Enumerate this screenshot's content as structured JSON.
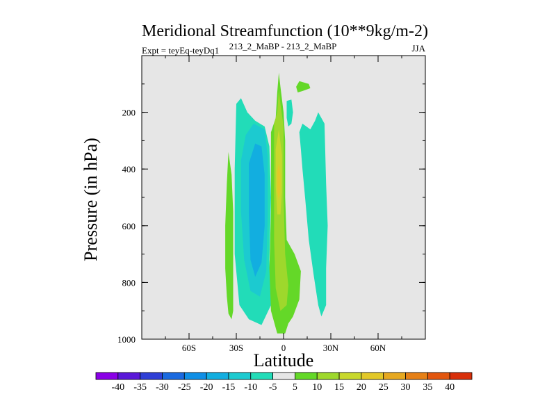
{
  "chart_data": {
    "type": "heatmap",
    "title": "Meridional Streamfunction (10**9kg/m-2)",
    "left_subtitle": "Expt = teyEq-teyDq1",
    "center_subtitle": "213_2_MaBP - 213_2_MaBP",
    "right_subtitle": "JJA",
    "xlabel": "Latitude",
    "ylabel": "Pressure (in hPa)",
    "xlim": [
      -90,
      90
    ],
    "ylim": [
      1000,
      0
    ],
    "xticks": [
      {
        "value": -60,
        "label": "60S"
      },
      {
        "value": -30,
        "label": "30S"
      },
      {
        "value": 0,
        "label": "0"
      },
      {
        "value": 30,
        "label": "30N"
      },
      {
        "value": 60,
        "label": "60N"
      }
    ],
    "yticks": [
      {
        "value": 200,
        "label": "200"
      },
      {
        "value": 400,
        "label": "400"
      },
      {
        "value": 600,
        "label": "600"
      },
      {
        "value": 800,
        "label": "800"
      },
      {
        "value": 1000,
        "label": "1000"
      }
    ],
    "background_color": "#e6e6e6",
    "colorbar": {
      "labels": [
        "-40",
        "-35",
        "-30",
        "-25",
        "-20",
        "-15",
        "-10",
        "-5",
        "5",
        "10",
        "15",
        "20",
        "25",
        "30",
        "35",
        "40"
      ],
      "colors": [
        "#8a00e6",
        "#5a18d8",
        "#2f3fd6",
        "#1a6ae0",
        "#0f8fe6",
        "#12aee0",
        "#1ccad0",
        "#22dcb8",
        "#e6e6e6",
        "#64d828",
        "#9ed82c",
        "#c8d82c",
        "#e2c828",
        "#e6a820",
        "#e68016",
        "#e2560e",
        "#d8300a"
      ]
    },
    "regions": [
      {
        "name": "outer-s-green",
        "level": "5",
        "color": "#64d828",
        "points": [
          [
            -35,
            910
          ],
          [
            -36,
            850
          ],
          [
            -37,
            750
          ],
          [
            -37,
            600
          ],
          [
            -36,
            450
          ],
          [
            -35,
            340
          ],
          [
            -33,
            420
          ],
          [
            -32,
            550
          ],
          [
            -32,
            750
          ],
          [
            -32,
            900
          ],
          [
            -33,
            930
          ]
        ]
      },
      {
        "name": "neg-cyan-s",
        "level": "-5",
        "color": "#22dcb8",
        "points": [
          [
            -30,
            170
          ],
          [
            -27,
            150
          ],
          [
            -23,
            200
          ],
          [
            -18,
            230
          ],
          [
            -12,
            250
          ],
          [
            -9,
            320
          ],
          [
            -8,
            500
          ],
          [
            -9,
            720
          ],
          [
            -8,
            880
          ],
          [
            -14,
            950
          ],
          [
            -22,
            930
          ],
          [
            -28,
            880
          ],
          [
            -31,
            700
          ],
          [
            -31,
            400
          ]
        ]
      },
      {
        "name": "neg-teal-s",
        "level": "-10",
        "color": "#1ccad0",
        "points": [
          [
            -27,
            370
          ],
          [
            -24,
            280
          ],
          [
            -19,
            240
          ],
          [
            -12,
            260
          ],
          [
            -10,
            360
          ],
          [
            -10,
            550
          ],
          [
            -11,
            760
          ],
          [
            -15,
            850
          ],
          [
            -21,
            830
          ],
          [
            -25,
            720
          ],
          [
            -27,
            550
          ]
        ]
      },
      {
        "name": "neg-blue-s",
        "level": "-15",
        "color": "#12aee0",
        "points": [
          [
            -22,
            380
          ],
          [
            -18,
            310
          ],
          [
            -14,
            320
          ],
          [
            -12,
            420
          ],
          [
            -12,
            600
          ],
          [
            -14,
            730
          ],
          [
            -18,
            780
          ],
          [
            -21,
            720
          ],
          [
            -22,
            560
          ]
        ]
      },
      {
        "name": "pos-eq-green",
        "level": "5",
        "color": "#64d828",
        "points": [
          [
            -8,
            270
          ],
          [
            -5,
            220
          ],
          [
            -4,
            130
          ],
          [
            -3,
            60
          ],
          [
            -2,
            110
          ],
          [
            0,
            200
          ],
          [
            1,
            300
          ],
          [
            1,
            500
          ],
          [
            2,
            650
          ],
          [
            7,
            700
          ],
          [
            11,
            760
          ],
          [
            10,
            860
          ],
          [
            6,
            920
          ],
          [
            3,
            945
          ],
          [
            1,
            980
          ],
          [
            -4,
            980
          ],
          [
            -8,
            900
          ],
          [
            -9,
            750
          ],
          [
            -8,
            550
          ]
        ]
      },
      {
        "name": "pos-eq-lime",
        "level": "10",
        "color": "#9ed82c",
        "points": [
          [
            -6,
            240
          ],
          [
            -4,
            200
          ],
          [
            -3,
            120
          ],
          [
            -2,
            170
          ],
          [
            0,
            250
          ],
          [
            0,
            500
          ],
          [
            1,
            700
          ],
          [
            3,
            810
          ],
          [
            2,
            880
          ],
          [
            -2,
            900
          ],
          [
            -5,
            820
          ],
          [
            -6,
            650
          ],
          [
            -6,
            450
          ]
        ]
      },
      {
        "name": "pos-eq-yellow",
        "level": "15",
        "color": "#c8d82c",
        "points": [
          [
            -5,
            330
          ],
          [
            -3,
            260
          ],
          [
            -1,
            350
          ],
          [
            -1,
            480
          ],
          [
            -2,
            560
          ],
          [
            -4,
            560
          ],
          [
            -5,
            460
          ]
        ]
      },
      {
        "name": "pos-eq-orange",
        "level": "20",
        "color": "#e2c828",
        "points": [
          [
            -4,
            410
          ],
          [
            -3,
            380
          ],
          [
            -2,
            420
          ],
          [
            -2,
            470
          ],
          [
            -3,
            510
          ],
          [
            -4,
            480
          ]
        ]
      },
      {
        "name": "neg-cyan-eqn",
        "level": "-5",
        "color": "#22dcb8",
        "points": [
          [
            2,
            160
          ],
          [
            5,
            155
          ],
          [
            6,
            200
          ],
          [
            5,
            240
          ],
          [
            3,
            250
          ],
          [
            2,
            220
          ]
        ]
      },
      {
        "name": "neg-cyan-n-strip",
        "level": "-5",
        "color": "#22dcb8",
        "points": [
          [
            10,
            270
          ],
          [
            12,
            240
          ],
          [
            17,
            260
          ],
          [
            20,
            230
          ],
          [
            22,
            200
          ],
          [
            26,
            240
          ],
          [
            27,
            450
          ],
          [
            28,
            600
          ],
          [
            27,
            750
          ],
          [
            27,
            880
          ],
          [
            24,
            920
          ],
          [
            22,
            880
          ],
          [
            19,
            770
          ],
          [
            16,
            650
          ],
          [
            14,
            520
          ],
          [
            12,
            400
          ],
          [
            11,
            330
          ]
        ]
      },
      {
        "name": "pos-north-green",
        "level": "5",
        "color": "#64d828",
        "points": [
          [
            8,
            110
          ],
          [
            10,
            90
          ],
          [
            16,
            100
          ],
          [
            17,
            115
          ],
          [
            12,
            125
          ],
          [
            9,
            130
          ]
        ]
      }
    ]
  }
}
